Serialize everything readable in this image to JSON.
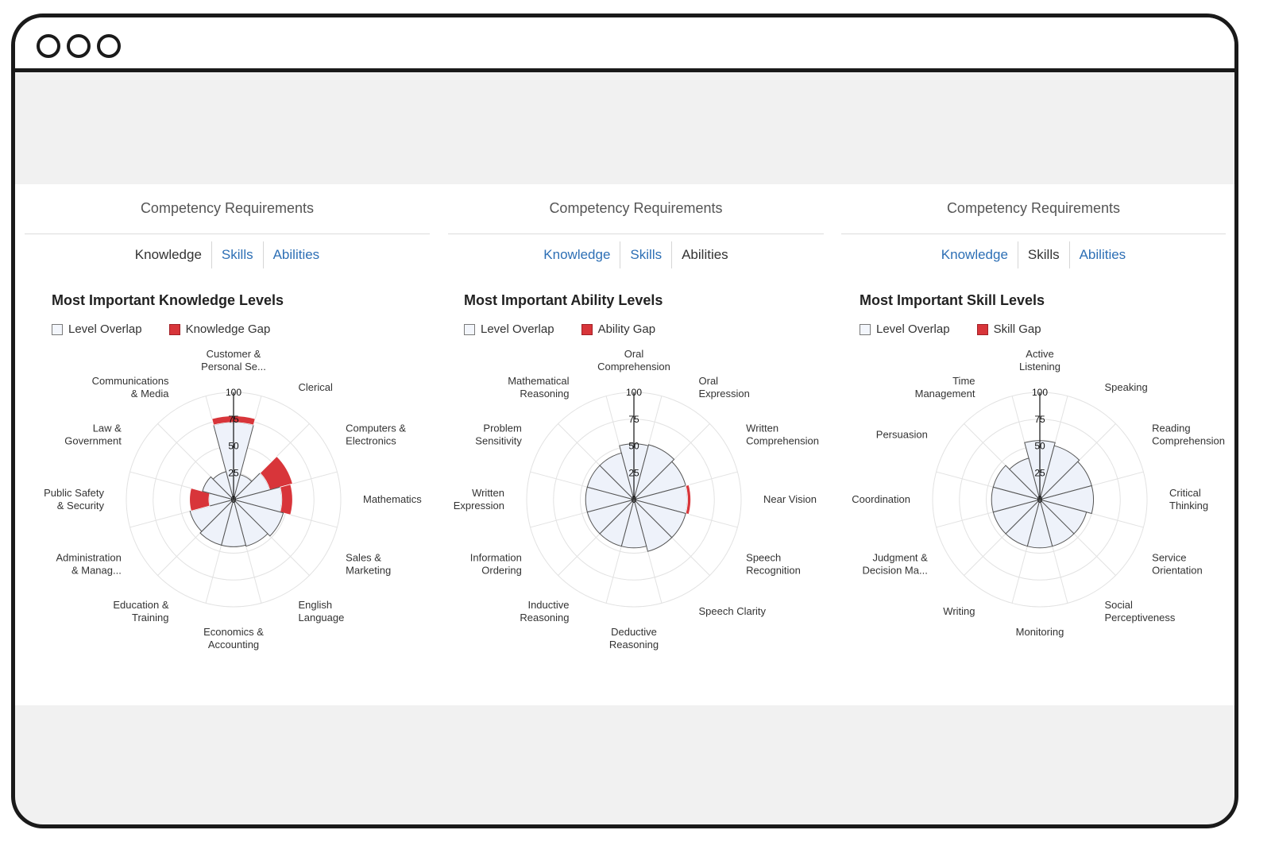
{
  "window": {
    "controls": [
      "window-dot-1",
      "window-dot-2",
      "window-dot-3"
    ]
  },
  "colors": {
    "overlap": "#eef2fa",
    "overlap_stroke": "#555555",
    "gap": "#d8353a",
    "grid": "#e2e2e2",
    "tab_link": "#2d6fb5"
  },
  "cards": [
    {
      "title": "Competency Requirements",
      "tabs": [
        {
          "label": "Knowledge",
          "active": true
        },
        {
          "label": "Skills",
          "active": false
        },
        {
          "label": "Abilities",
          "active": false
        }
      ],
      "heading": "Most Important Knowledge Levels",
      "legend": {
        "overlap": "Level Overlap",
        "gap": "Knowledge Gap"
      }
    },
    {
      "title": "Competency Requirements",
      "tabs": [
        {
          "label": "Knowledge",
          "active": false
        },
        {
          "label": "Skills",
          "active": false
        },
        {
          "label": "Abilities",
          "active": true
        }
      ],
      "heading": "Most Important Ability Levels",
      "legend": {
        "overlap": "Level Overlap",
        "gap": "Ability Gap"
      }
    },
    {
      "title": "Competency Requirements",
      "tabs": [
        {
          "label": "Knowledge",
          "active": false
        },
        {
          "label": "Skills",
          "active": true
        },
        {
          "label": "Abilities",
          "active": false
        }
      ],
      "heading": "Most Important Skill Levels",
      "legend": {
        "overlap": "Level Overlap",
        "gap": "Skill Gap"
      }
    }
  ],
  "chart_data": [
    {
      "type": "polar-bar",
      "title": "Most Important Knowledge Levels",
      "rlim": [
        0,
        100
      ],
      "rticks": [
        0,
        25,
        50,
        75,
        100
      ],
      "series": [
        {
          "name": "Level Overlap"
        },
        {
          "name": "Knowledge Gap"
        }
      ],
      "categories": [
        {
          "lines": [
            "Customer  &",
            "Personal Se..."
          ],
          "overlap": 72,
          "gap": 6
        },
        {
          "lines": [
            "Clerical"
          ],
          "overlap": 24,
          "gap": 0
        },
        {
          "lines": [
            "Computers  &",
            "Electronics"
          ],
          "overlap": 35,
          "gap": 22
        },
        {
          "lines": [
            "Mathematics"
          ],
          "overlap": 45,
          "gap": 10
        },
        {
          "lines": [
            "Sales  &",
            "Marketing"
          ],
          "overlap": 48,
          "gap": 0
        },
        {
          "lines": [
            "English",
            "Language"
          ],
          "overlap": 45,
          "gap": 0
        },
        {
          "lines": [
            "Economics  &",
            "Accounting"
          ],
          "overlap": 44,
          "gap": 0
        },
        {
          "lines": [
            "Education  &",
            "Training"
          ],
          "overlap": 44,
          "gap": 0
        },
        {
          "lines": [
            "Administration",
            "&  Manag..."
          ],
          "overlap": 42,
          "gap": 0
        },
        {
          "lines": [
            "Public Safety",
            "&  Security"
          ],
          "overlap": 23,
          "gap": 18
        },
        {
          "lines": [
            "Law  &",
            "Government"
          ],
          "overlap": 30,
          "gap": 0
        },
        {
          "lines": [
            "Communications",
            "&  Media"
          ],
          "overlap": 27,
          "gap": 0
        }
      ]
    },
    {
      "type": "polar-bar",
      "title": "Most Important Ability Levels",
      "rlim": [
        0,
        100
      ],
      "rticks": [
        0,
        25,
        50,
        75,
        100
      ],
      "series": [
        {
          "name": "Level Overlap"
        },
        {
          "name": "Ability Gap"
        }
      ],
      "categories": [
        {
          "lines": [
            "Oral",
            "Comprehension"
          ],
          "overlap": 52,
          "gap": 0
        },
        {
          "lines": [
            "Oral",
            "Expression"
          ],
          "overlap": 53,
          "gap": 0
        },
        {
          "lines": [
            "Written",
            "Comprehension"
          ],
          "overlap": 50,
          "gap": 0
        },
        {
          "lines": [
            "Near Vision"
          ],
          "overlap": 50,
          "gap": 3
        },
        {
          "lines": [
            "Speech",
            "Recognition"
          ],
          "overlap": 50,
          "gap": 0
        },
        {
          "lines": [
            "Speech Clarity"
          ],
          "overlap": 50,
          "gap": 0
        },
        {
          "lines": [
            "Deductive",
            "Reasoning"
          ],
          "overlap": 45,
          "gap": 0
        },
        {
          "lines": [
            "Inductive",
            "Reasoning"
          ],
          "overlap": 45,
          "gap": 0
        },
        {
          "lines": [
            "Information",
            "Ordering"
          ],
          "overlap": 45,
          "gap": 0
        },
        {
          "lines": [
            "Written",
            "Expression"
          ],
          "overlap": 45,
          "gap": 0
        },
        {
          "lines": [
            "Problem",
            "Sensitivity"
          ],
          "overlap": 45,
          "gap": 0
        },
        {
          "lines": [
            "Mathematical",
            "Reasoning"
          ],
          "overlap": 45,
          "gap": 0
        }
      ]
    },
    {
      "type": "polar-bar",
      "title": "Most Important Skill Levels",
      "rlim": [
        0,
        100
      ],
      "rticks": [
        0,
        25,
        50,
        75,
        100
      ],
      "series": [
        {
          "name": "Level Overlap"
        },
        {
          "name": "Skill Gap"
        }
      ],
      "categories": [
        {
          "lines": [
            "Active",
            "Listening"
          ],
          "overlap": 55,
          "gap": 0
        },
        {
          "lines": [
            "Speaking"
          ],
          "overlap": 52,
          "gap": 0
        },
        {
          "lines": [
            "Reading",
            "Comprehension"
          ],
          "overlap": 50,
          "gap": 0
        },
        {
          "lines": [
            "Critical",
            "Thinking"
          ],
          "overlap": 50,
          "gap": 0
        },
        {
          "lines": [
            "Service",
            "Orientation"
          ],
          "overlap": 45,
          "gap": 0
        },
        {
          "lines": [
            "Social",
            "Perceptiveness"
          ],
          "overlap": 45,
          "gap": 0
        },
        {
          "lines": [
            "Monitoring"
          ],
          "overlap": 45,
          "gap": 0
        },
        {
          "lines": [
            "Writing"
          ],
          "overlap": 45,
          "gap": 0
        },
        {
          "lines": [
            "Judgment  &",
            "Decision Ma..."
          ],
          "overlap": 45,
          "gap": 0
        },
        {
          "lines": [
            "Coordination"
          ],
          "overlap": 45,
          "gap": 0
        },
        {
          "lines": [
            "Persuasion"
          ],
          "overlap": 45,
          "gap": 0
        },
        {
          "lines": [
            "Time",
            "Management"
          ],
          "overlap": 40,
          "gap": 0
        }
      ]
    }
  ]
}
